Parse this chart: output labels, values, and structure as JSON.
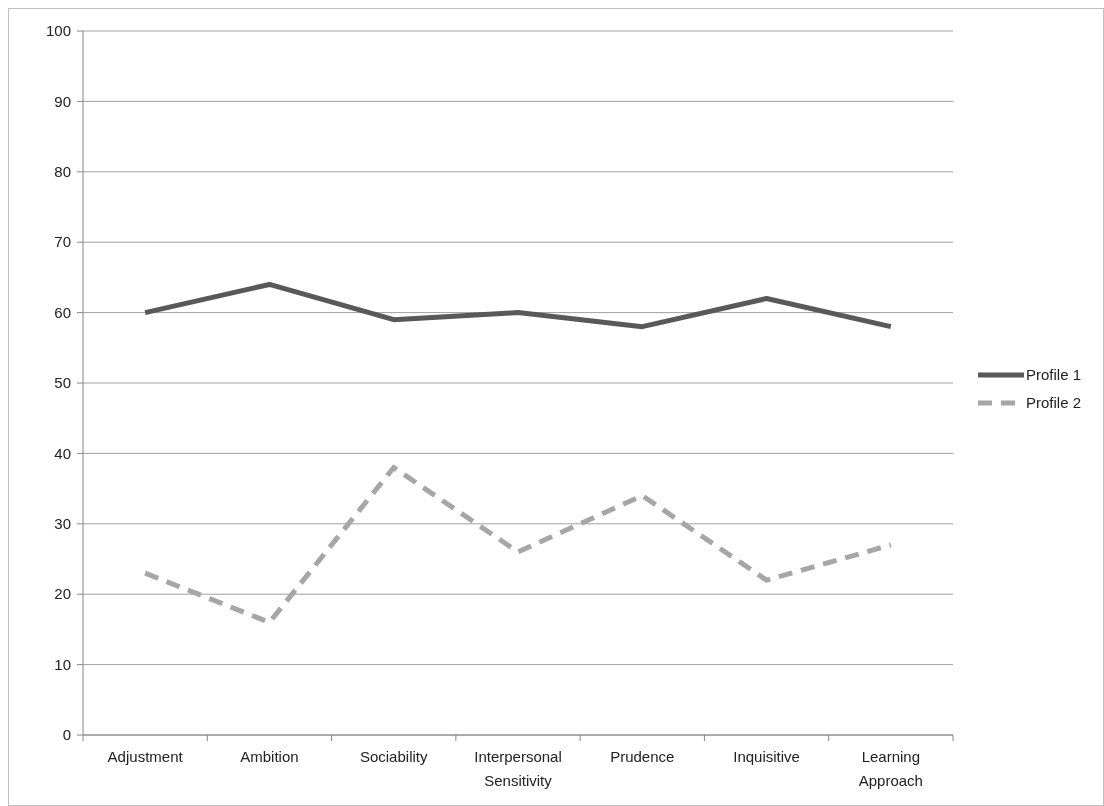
{
  "chart_data": {
    "type": "line",
    "categories": [
      "Adjustment",
      "Ambition",
      "Sociability",
      "Interpersonal Sensitivity",
      "Prudence",
      "Inquisitive",
      "Learning Approach"
    ],
    "series": [
      {
        "name": "Profile 1",
        "color": "#595959",
        "line_style": "solid",
        "values": [
          60,
          64,
          59,
          60,
          58,
          62,
          58
        ]
      },
      {
        "name": "Profile 2",
        "color": "#a6a6a6",
        "line_style": "dashed",
        "values": [
          23,
          16,
          38,
          26,
          34,
          22,
          27
        ]
      }
    ],
    "ylim": [
      0,
      100
    ],
    "yticks": [
      0,
      10,
      20,
      30,
      40,
      50,
      60,
      70,
      80,
      90,
      100
    ],
    "grid": "y",
    "legend": "right",
    "marker": "none"
  }
}
